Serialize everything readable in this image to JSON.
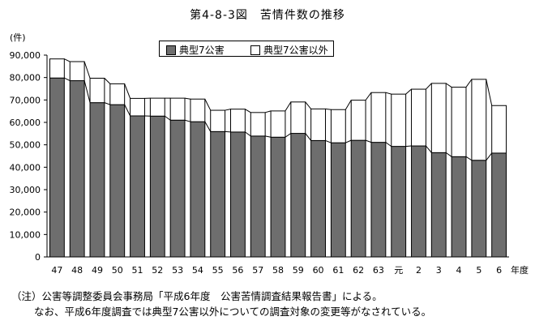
{
  "title": "第4-8-3図　苦情件数の推移",
  "notes": [
    "（注）公害等調整委員会事務局「平成6年度　公害苦情調査結果報告書」による。",
    "なお、平成6年度調査では典型7公害以外についての調査対象の変更等がなされている。"
  ],
  "colors": {
    "typical": "#6e6e6e",
    "other": "#ffffff",
    "stroke": "#000000"
  },
  "chart_data": {
    "type": "bar",
    "stacked": true,
    "ylabel": "(件)",
    "xunit": "年度",
    "ylim": [
      0,
      90000
    ],
    "yticks": [
      "0",
      "10,000",
      "20,000",
      "30,000",
      "40,000",
      "50,000",
      "60,000",
      "70,000",
      "80,000",
      "90,000"
    ],
    "categories": [
      "47",
      "48",
      "49",
      "50",
      "51",
      "52",
      "53",
      "54",
      "55",
      "56",
      "57",
      "58",
      "59",
      "60",
      "61",
      "62",
      "63",
      "元",
      "2",
      "3",
      "4",
      "5",
      "6"
    ],
    "legend": [
      "典型7公害",
      "典型7公害以外"
    ],
    "series": [
      {
        "name": "典型7公害",
        "values": [
          79800,
          78600,
          68800,
          67900,
          62900,
          62800,
          61000,
          60300,
          55900,
          55700,
          53900,
          53400,
          55100,
          51900,
          50900,
          52000,
          51100,
          49300,
          49500,
          46500,
          44700,
          43100,
          46300
        ]
      },
      {
        "name": "典型7公害以外",
        "values": [
          8500,
          8500,
          10900,
          9300,
          7800,
          8000,
          9800,
          10100,
          9500,
          10200,
          10500,
          11700,
          14000,
          14100,
          14800,
          17900,
          22200,
          23300,
          25300,
          30900,
          31000,
          36100,
          21200
        ]
      }
    ]
  }
}
